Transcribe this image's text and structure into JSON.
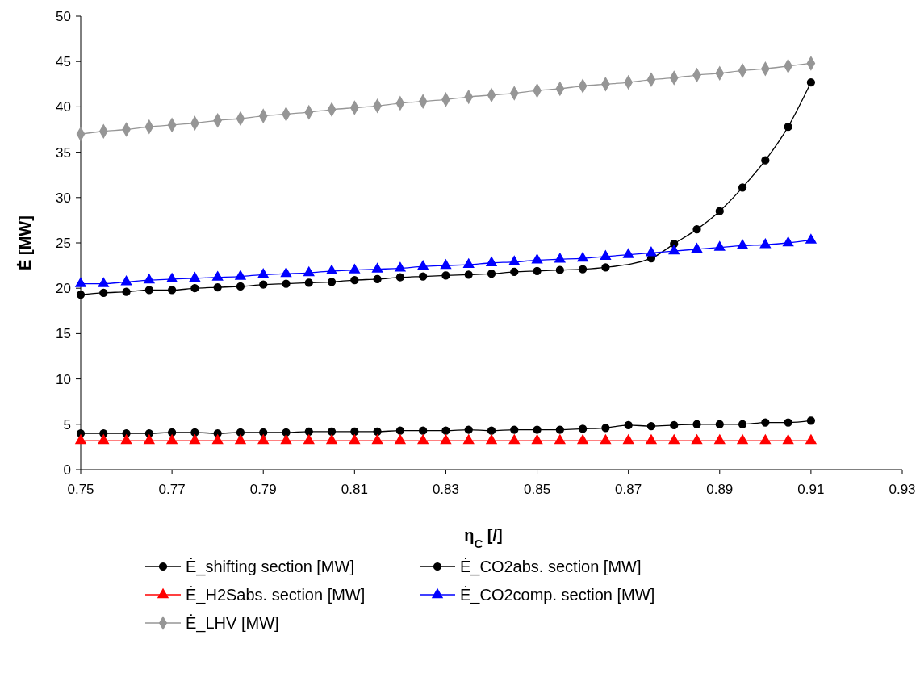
{
  "chart_data": {
    "type": "line",
    "xlabel": "η$_{C}$ [/]",
    "ylabel": "Ė [MW]",
    "xlim": [
      0.75,
      0.93
    ],
    "xticks": [
      {
        "value": 0.75,
        "label": "0.75"
      },
      {
        "value": 0.77,
        "label": "0.77"
      },
      {
        "value": 0.79,
        "label": "0.79"
      },
      {
        "value": 0.81,
        "label": "0.81"
      },
      {
        "value": 0.83,
        "label": "0.83"
      },
      {
        "value": 0.85,
        "label": "0.85"
      },
      {
        "value": 0.87,
        "label": "0.87"
      },
      {
        "value": 0.89,
        "label": "0.89"
      },
      {
        "value": 0.91,
        "label": "0.91"
      },
      {
        "value": 0.93,
        "label": "0.93"
      }
    ],
    "ylim": [
      0,
      50
    ],
    "yticks": [
      0,
      5,
      10,
      15,
      20,
      25,
      30,
      35,
      40,
      45,
      50
    ],
    "grid": false,
    "legend": "bottom",
    "line_style": "solid",
    "x": [
      0.75,
      0.755,
      0.76,
      0.765,
      0.77,
      0.775,
      0.78,
      0.785,
      0.79,
      0.795,
      0.8,
      0.805,
      0.81,
      0.815,
      0.82,
      0.825,
      0.83,
      0.835,
      0.84,
      0.845,
      0.85,
      0.855,
      0.86,
      0.865,
      0.87,
      0.875,
      0.88,
      0.885,
      0.89,
      0.895,
      0.9,
      0.905,
      0.91
    ],
    "series": [
      {
        "name": "Ė_shifting section [MW]",
        "color": "#000000",
        "marker": "circle",
        "x": [
          0.75,
          0.755,
          0.76,
          0.765,
          0.77,
          0.775,
          0.78,
          0.785,
          0.79,
          0.795,
          0.8,
          0.805,
          0.81,
          0.815,
          0.82,
          0.825,
          0.83,
          0.835,
          0.84,
          0.845,
          0.85,
          0.855,
          0.86,
          0.865,
          0.875,
          0.88,
          0.885,
          0.89,
          0.895,
          0.9,
          0.905,
          0.91
        ],
        "values": [
          19.3,
          19.5,
          19.6,
          19.8,
          19.8,
          20.0,
          20.1,
          20.2,
          20.4,
          20.5,
          20.6,
          20.7,
          20.9,
          21.0,
          21.2,
          21.3,
          21.4,
          21.5,
          21.6,
          21.8,
          21.9,
          22.0,
          22.1,
          22.3,
          23.3,
          24.9,
          26.5,
          28.5,
          31.1,
          34.1,
          37.8,
          42.7
        ]
      },
      {
        "name": "Ė_CO2abs. section [MW]",
        "color": "#000000",
        "marker": "circle",
        "values": [
          4.0,
          4.0,
          4.0,
          4.0,
          4.1,
          4.1,
          4.0,
          4.1,
          4.1,
          4.1,
          4.2,
          4.2,
          4.2,
          4.2,
          4.3,
          4.3,
          4.3,
          4.4,
          4.3,
          4.4,
          4.4,
          4.4,
          4.5,
          4.6,
          4.9,
          4.8,
          4.9,
          5.0,
          5.0,
          5.0,
          5.2,
          5.2,
          5.4
        ]
      },
      {
        "name": "Ė_H2Sabs. section [MW]",
        "color": "#ff0000",
        "marker": "triangle",
        "values": [
          3.2,
          3.2,
          3.2,
          3.2,
          3.2,
          3.2,
          3.2,
          3.2,
          3.2,
          3.2,
          3.2,
          3.2,
          3.2,
          3.2,
          3.2,
          3.2,
          3.2,
          3.2,
          3.2,
          3.2,
          3.2,
          3.2,
          3.2,
          3.2,
          3.2,
          3.2,
          3.2,
          3.2,
          3.2,
          3.2,
          3.2,
          3.2,
          3.2
        ]
      },
      {
        "name": "Ė_CO2comp. section [MW]",
        "color": "#0000ff",
        "marker": "triangle",
        "values": [
          20.5,
          20.5,
          20.7,
          20.9,
          21.0,
          21.1,
          21.2,
          21.3,
          21.5,
          21.6,
          21.7,
          21.9,
          22.0,
          22.1,
          22.2,
          22.4,
          22.5,
          22.6,
          22.8,
          22.9,
          23.1,
          23.2,
          23.3,
          23.5,
          23.7,
          23.9,
          24.1,
          24.3,
          24.5,
          24.7,
          24.8,
          25.0,
          25.3
        ]
      },
      {
        "name": "Ė_LHV [MW]",
        "color": "#969696",
        "marker": "diamond",
        "values": [
          37.0,
          37.3,
          37.5,
          37.8,
          38.0,
          38.2,
          38.5,
          38.7,
          39.0,
          39.2,
          39.4,
          39.7,
          39.9,
          40.1,
          40.4,
          40.6,
          40.8,
          41.1,
          41.3,
          41.5,
          41.8,
          42.0,
          42.3,
          42.5,
          42.7,
          43.0,
          43.2,
          43.5,
          43.7,
          44.0,
          44.2,
          44.5,
          44.8
        ]
      }
    ]
  }
}
